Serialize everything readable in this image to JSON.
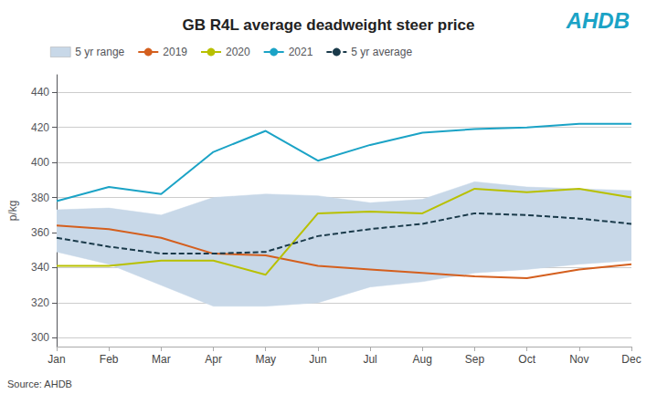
{
  "chart_data": {
    "type": "line",
    "title": "GB R4L average deadweight steer price",
    "ylabel": "p/kg",
    "source": "Source: AHDB",
    "annotations": [
      {
        "text": "AHDB",
        "color": "#1ba3c6"
      }
    ],
    "categories": [
      "Jan",
      "Feb",
      "Mar",
      "Apr",
      "May",
      "Jun",
      "Jul",
      "Aug",
      "Sep",
      "Oct",
      "Nov",
      "Dec"
    ],
    "ylim": [
      295,
      450
    ],
    "yticks": [
      300,
      320,
      340,
      360,
      380,
      400,
      420,
      440
    ],
    "grid": true,
    "legend": "upper left",
    "series": [
      {
        "name": "5 yr range",
        "type": "band",
        "color": "#c8d8e8",
        "lower": [
          349,
          342,
          330,
          318,
          318,
          320,
          329,
          332,
          337,
          339,
          342,
          344
        ],
        "upper": [
          373,
          374,
          370,
          380,
          382,
          381,
          377,
          379,
          389,
          386,
          385,
          384
        ]
      },
      {
        "name": "2019",
        "type": "line",
        "color": "#d45f1e",
        "line_style": "solid",
        "values": [
          364,
          362,
          357,
          348,
          347,
          341,
          339,
          337,
          335,
          334,
          339,
          342
        ]
      },
      {
        "name": "2020",
        "type": "line",
        "color": "#b8c000",
        "line_style": "solid",
        "values": [
          341,
          341,
          344,
          344,
          336,
          371,
          372,
          371,
          385,
          383,
          385,
          380
        ]
      },
      {
        "name": "2021",
        "type": "line",
        "color": "#1ba3c6",
        "line_style": "solid",
        "values": [
          378,
          386,
          382,
          406,
          418,
          401,
          410,
          417,
          419,
          420,
          422,
          422
        ]
      },
      {
        "name": "5 yr average",
        "type": "line",
        "color": "#1a3a4a",
        "line_style": "dashed",
        "values": [
          357,
          352,
          348,
          348,
          349,
          358,
          362,
          365,
          371,
          370,
          368,
          365
        ]
      }
    ]
  }
}
